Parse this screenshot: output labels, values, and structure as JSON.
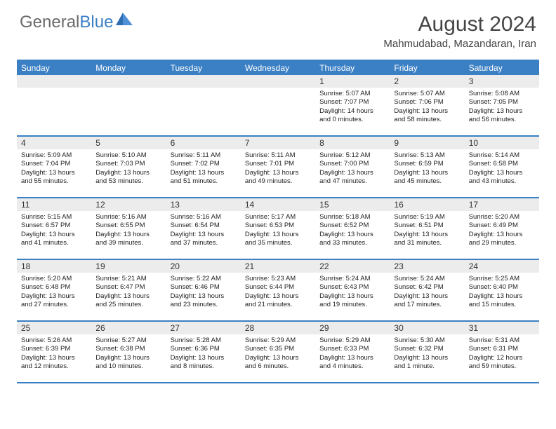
{
  "logo": {
    "general": "General",
    "blue": "Blue"
  },
  "title": "August 2024",
  "location": "Mahmudabad, Mazandaran, Iran",
  "colors": {
    "accent": "#3b7fc4",
    "header_text": "#444444",
    "daynum_bg": "#ececec",
    "body_text": "#222222",
    "logo_gray": "#6a6a6a"
  },
  "weekdays": [
    "Sunday",
    "Monday",
    "Tuesday",
    "Wednesday",
    "Thursday",
    "Friday",
    "Saturday"
  ],
  "weeks": [
    [
      null,
      null,
      null,
      null,
      {
        "n": "1",
        "sr": "5:07 AM",
        "ss": "7:07 PM",
        "dl": "14 hours and 0 minutes."
      },
      {
        "n": "2",
        "sr": "5:07 AM",
        "ss": "7:06 PM",
        "dl": "13 hours and 58 minutes."
      },
      {
        "n": "3",
        "sr": "5:08 AM",
        "ss": "7:05 PM",
        "dl": "13 hours and 56 minutes."
      }
    ],
    [
      {
        "n": "4",
        "sr": "5:09 AM",
        "ss": "7:04 PM",
        "dl": "13 hours and 55 minutes."
      },
      {
        "n": "5",
        "sr": "5:10 AM",
        "ss": "7:03 PM",
        "dl": "13 hours and 53 minutes."
      },
      {
        "n": "6",
        "sr": "5:11 AM",
        "ss": "7:02 PM",
        "dl": "13 hours and 51 minutes."
      },
      {
        "n": "7",
        "sr": "5:11 AM",
        "ss": "7:01 PM",
        "dl": "13 hours and 49 minutes."
      },
      {
        "n": "8",
        "sr": "5:12 AM",
        "ss": "7:00 PM",
        "dl": "13 hours and 47 minutes."
      },
      {
        "n": "9",
        "sr": "5:13 AM",
        "ss": "6:59 PM",
        "dl": "13 hours and 45 minutes."
      },
      {
        "n": "10",
        "sr": "5:14 AM",
        "ss": "6:58 PM",
        "dl": "13 hours and 43 minutes."
      }
    ],
    [
      {
        "n": "11",
        "sr": "5:15 AM",
        "ss": "6:57 PM",
        "dl": "13 hours and 41 minutes."
      },
      {
        "n": "12",
        "sr": "5:16 AM",
        "ss": "6:55 PM",
        "dl": "13 hours and 39 minutes."
      },
      {
        "n": "13",
        "sr": "5:16 AM",
        "ss": "6:54 PM",
        "dl": "13 hours and 37 minutes."
      },
      {
        "n": "14",
        "sr": "5:17 AM",
        "ss": "6:53 PM",
        "dl": "13 hours and 35 minutes."
      },
      {
        "n": "15",
        "sr": "5:18 AM",
        "ss": "6:52 PM",
        "dl": "13 hours and 33 minutes."
      },
      {
        "n": "16",
        "sr": "5:19 AM",
        "ss": "6:51 PM",
        "dl": "13 hours and 31 minutes."
      },
      {
        "n": "17",
        "sr": "5:20 AM",
        "ss": "6:49 PM",
        "dl": "13 hours and 29 minutes."
      }
    ],
    [
      {
        "n": "18",
        "sr": "5:20 AM",
        "ss": "6:48 PM",
        "dl": "13 hours and 27 minutes."
      },
      {
        "n": "19",
        "sr": "5:21 AM",
        "ss": "6:47 PM",
        "dl": "13 hours and 25 minutes."
      },
      {
        "n": "20",
        "sr": "5:22 AM",
        "ss": "6:46 PM",
        "dl": "13 hours and 23 minutes."
      },
      {
        "n": "21",
        "sr": "5:23 AM",
        "ss": "6:44 PM",
        "dl": "13 hours and 21 minutes."
      },
      {
        "n": "22",
        "sr": "5:24 AM",
        "ss": "6:43 PM",
        "dl": "13 hours and 19 minutes."
      },
      {
        "n": "23",
        "sr": "5:24 AM",
        "ss": "6:42 PM",
        "dl": "13 hours and 17 minutes."
      },
      {
        "n": "24",
        "sr": "5:25 AM",
        "ss": "6:40 PM",
        "dl": "13 hours and 15 minutes."
      }
    ],
    [
      {
        "n": "25",
        "sr": "5:26 AM",
        "ss": "6:39 PM",
        "dl": "13 hours and 12 minutes."
      },
      {
        "n": "26",
        "sr": "5:27 AM",
        "ss": "6:38 PM",
        "dl": "13 hours and 10 minutes."
      },
      {
        "n": "27",
        "sr": "5:28 AM",
        "ss": "6:36 PM",
        "dl": "13 hours and 8 minutes."
      },
      {
        "n": "28",
        "sr": "5:29 AM",
        "ss": "6:35 PM",
        "dl": "13 hours and 6 minutes."
      },
      {
        "n": "29",
        "sr": "5:29 AM",
        "ss": "6:33 PM",
        "dl": "13 hours and 4 minutes."
      },
      {
        "n": "30",
        "sr": "5:30 AM",
        "ss": "6:32 PM",
        "dl": "13 hours and 1 minute."
      },
      {
        "n": "31",
        "sr": "5:31 AM",
        "ss": "6:31 PM",
        "dl": "12 hours and 59 minutes."
      }
    ]
  ],
  "labels": {
    "sunrise": "Sunrise: ",
    "sunset": "Sunset: ",
    "daylight": "Daylight: "
  }
}
